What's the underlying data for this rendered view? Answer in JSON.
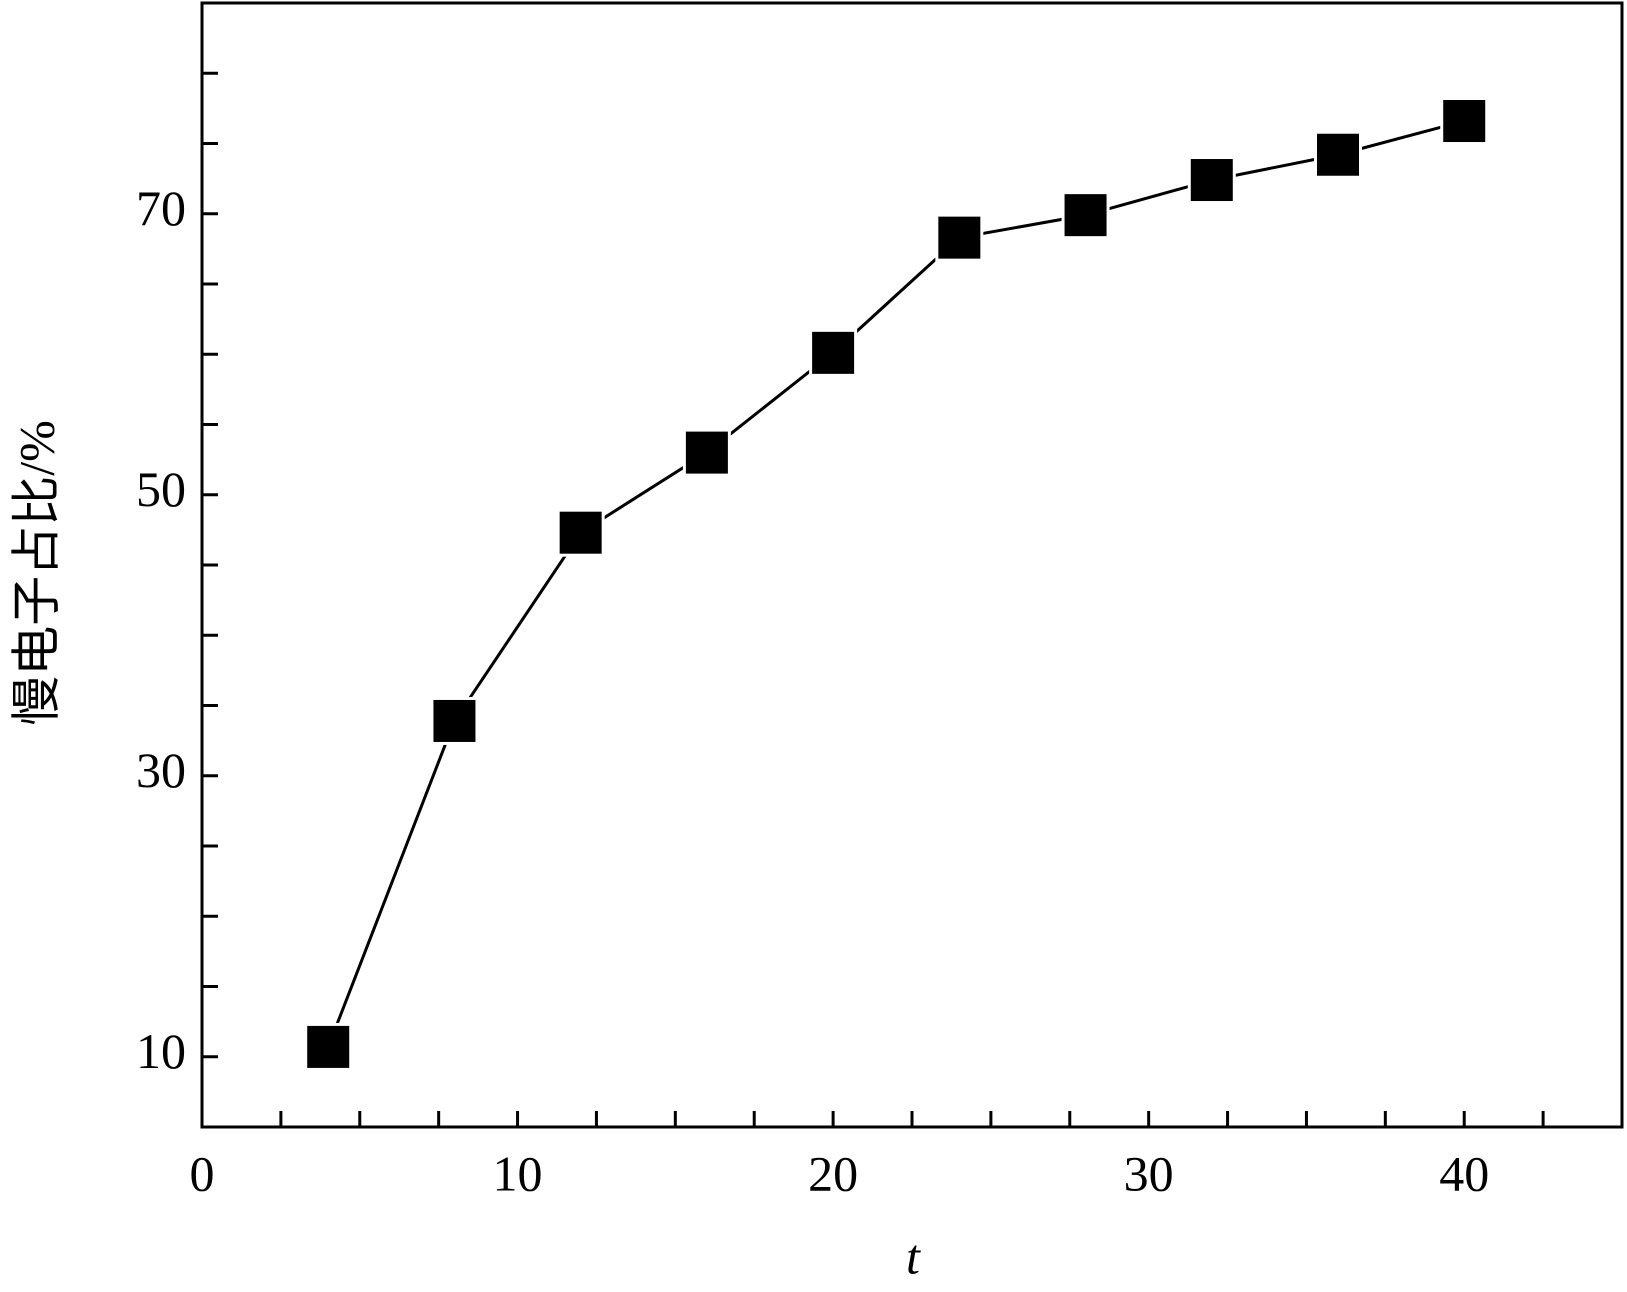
{
  "chart_data": {
    "type": "line",
    "x_label": "t",
    "y_label": "慢电子占比/%",
    "x": [
      4,
      8,
      12,
      16,
      20,
      24,
      28,
      32,
      36,
      40
    ],
    "series": [
      {
        "color": "#000000",
        "marker": "square",
        "values": [
          10.7,
          33.9,
          47.3,
          53.0,
          60.1,
          68.3,
          69.9,
          72.4,
          74.2,
          76.6
        ]
      }
    ],
    "xlim": [
      0,
      45
    ],
    "ylim": [
      5,
      85
    ],
    "xticks": [
      0,
      10,
      20,
      30,
      40
    ],
    "yticks": [
      10,
      30,
      50,
      70
    ],
    "minor_xticks": [
      2.5,
      5,
      7.5,
      12.5,
      15,
      17.5,
      22.5,
      25,
      27.5,
      32.5,
      35,
      37.5,
      42.5
    ],
    "minor_yticks": [
      5,
      15,
      20,
      25,
      35,
      40,
      45,
      55,
      60,
      65,
      75,
      80,
      85
    ],
    "grid": false
  }
}
